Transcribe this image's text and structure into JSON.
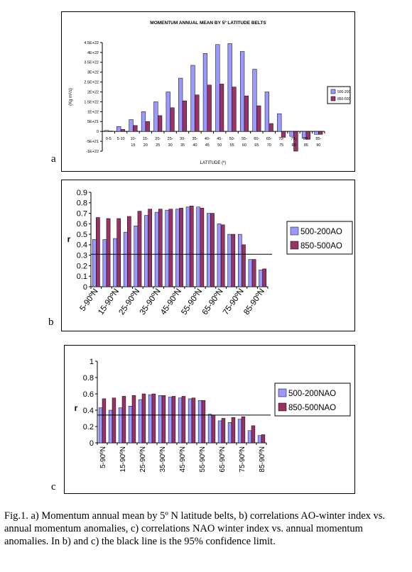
{
  "chart_data": [
    {
      "type": "bar",
      "panel_label": "a",
      "title": "MOMENTUM ANNUAL MEAN BY 5º LATITUDE BELTS",
      "xlabel": "LATITUDE (º)",
      "ylabel": "(Kg m²/s)",
      "yticks": [
        "4.5E+22",
        "4E+22",
        "3.5E+22",
        "3E+22",
        "2.5E+22",
        "2E+22",
        "1.5E+22",
        "1E+22",
        "5E+21",
        "0",
        "-5E+21",
        "-1E+22"
      ],
      "ylim": [
        -1e+22,
        4.5e+22
      ],
      "categories": [
        [
          "0-5"
        ],
        [
          "5-10"
        ],
        [
          "10-",
          "15"
        ],
        [
          "15-",
          "20"
        ],
        [
          "20-",
          "25"
        ],
        [
          "25-",
          "30"
        ],
        [
          "30-",
          "35"
        ],
        [
          "35-",
          "40"
        ],
        [
          "40-",
          "45"
        ],
        [
          "45-",
          "50"
        ],
        [
          "50-",
          "55"
        ],
        [
          "55-",
          "60"
        ],
        [
          "60-",
          "65"
        ],
        [
          "65-",
          "70"
        ],
        [
          "70-",
          "75"
        ],
        [
          "75-",
          "80"
        ],
        [
          "80-",
          "85"
        ],
        [
          "85-",
          "90"
        ]
      ],
      "series": [
        {
          "name": "500-200",
          "color": "#9999FF",
          "values": [
            5e+20,
            2.5e+21,
            6e+21,
            1e+22,
            1.5e+22,
            2e+22,
            2.7e+22,
            3.35e+22,
            3.95e+22,
            4.4e+22,
            4.45e+22,
            4.05e+22,
            3.15e+22,
            2e+22,
            9e+21,
            -2.5e+21,
            -3.5e+21,
            -1.5e+21
          ]
        },
        {
          "name": "850-500",
          "color": "#993366",
          "values": [
            2e+20,
            1e+21,
            3e+21,
            5e+21,
            8e+21,
            1.2e+22,
            1.55e+22,
            1.85e+22,
            2.35e+22,
            2.4e+22,
            2.25e+22,
            1.8e+22,
            1.3e+22,
            4e+21,
            -3e+21,
            -1e+22,
            -4e+21,
            -1.5e+21
          ]
        }
      ],
      "legend": "right"
    },
    {
      "type": "bar",
      "panel_label": "b",
      "ylabel": "r",
      "yticks": [
        "0",
        "0.1",
        "0.2",
        "0.3",
        "0.4",
        "0.5",
        "0.6",
        "0.7",
        "0.8",
        "0.9"
      ],
      "ylim": [
        0,
        0.9
      ],
      "categories": [
        "5-90ºN",
        "10-90ºN",
        "15-90ºN",
        "20-90ºN",
        "25-90ºN",
        "30-90ºN",
        "35-90ºN",
        "40-90ºN",
        "45-90ºN",
        "50-90ºN",
        "55-90ºN",
        "60-90ºN",
        "65-90ºN",
        "70-90ºN",
        "75-90ºN",
        "80-90ºN",
        "85-90ºN"
      ],
      "xtick_labels": [
        "5-90ºN",
        "15-90ºN",
        "25-90ºN",
        "35-90ºN",
        "45-90ºN",
        "55-90ºN",
        "65-90ºN",
        "75-90ºN",
        "85-90ºN"
      ],
      "confidence_line": 0.31,
      "series": [
        {
          "name": "500-200AO",
          "color": "#9999FF",
          "values": [
            0.45,
            0.45,
            0.46,
            0.52,
            0.58,
            0.68,
            0.71,
            0.73,
            0.74,
            0.76,
            0.76,
            0.7,
            0.6,
            0.5,
            0.5,
            0.26,
            0.16
          ]
        },
        {
          "name": "850-500AO",
          "color": "#993366",
          "values": [
            0.66,
            0.65,
            0.65,
            0.67,
            0.72,
            0.74,
            0.74,
            0.74,
            0.75,
            0.77,
            0.75,
            0.7,
            0.59,
            0.5,
            0.4,
            0.26,
            0.17
          ]
        }
      ],
      "legend": "right"
    },
    {
      "type": "bar",
      "panel_label": "c",
      "ylabel": "r",
      "yticks": [
        "0",
        "0.2",
        "0.4",
        "0.6",
        "0.8",
        "1"
      ],
      "ylim": [
        0,
        1
      ],
      "categories": [
        "5-90ºN",
        "10-90ºN",
        "15-90ºN",
        "20-90ºN",
        "25-90ºN",
        "30-90ºN",
        "35-90ºN",
        "40-90ºN",
        "45-90ºN",
        "50-90ºN",
        "55-90ºN",
        "60-90ºN",
        "65-90ºN",
        "70-90ºN",
        "75-90ºN",
        "80-90ºN",
        "85-90ºN"
      ],
      "xtick_labels": [
        "5-90ºN",
        "15-90ºN",
        "25-90ºN",
        "35-90ºN",
        "45-90ºN",
        "55-90ºN",
        "65-90ºN",
        "75-90ºN",
        "85-90ºN"
      ],
      "confidence_line": 0.34,
      "series": [
        {
          "name": "500-200NAO",
          "color": "#9999FF",
          "values": [
            0.43,
            0.4,
            0.43,
            0.45,
            0.53,
            0.59,
            0.58,
            0.56,
            0.55,
            0.54,
            0.52,
            0.35,
            0.27,
            0.25,
            0.29,
            0.15,
            0.09
          ]
        },
        {
          "name": "850-500NAO",
          "color": "#993366",
          "values": [
            0.54,
            0.55,
            0.57,
            0.58,
            0.6,
            0.6,
            0.58,
            0.57,
            0.57,
            0.55,
            0.52,
            0.34,
            0.3,
            0.31,
            0.32,
            0.21,
            0.1
          ]
        }
      ],
      "legend": "right"
    }
  ],
  "caption": "Fig.1. a) Momentum annual mean by 5º N latitude belts, b) correlations AO-winter index vs. annual momentum anomalies, c) correlations NAO winter index vs. annual momentum anomalies. In b) and c) the black line is the 95% confidence limit."
}
